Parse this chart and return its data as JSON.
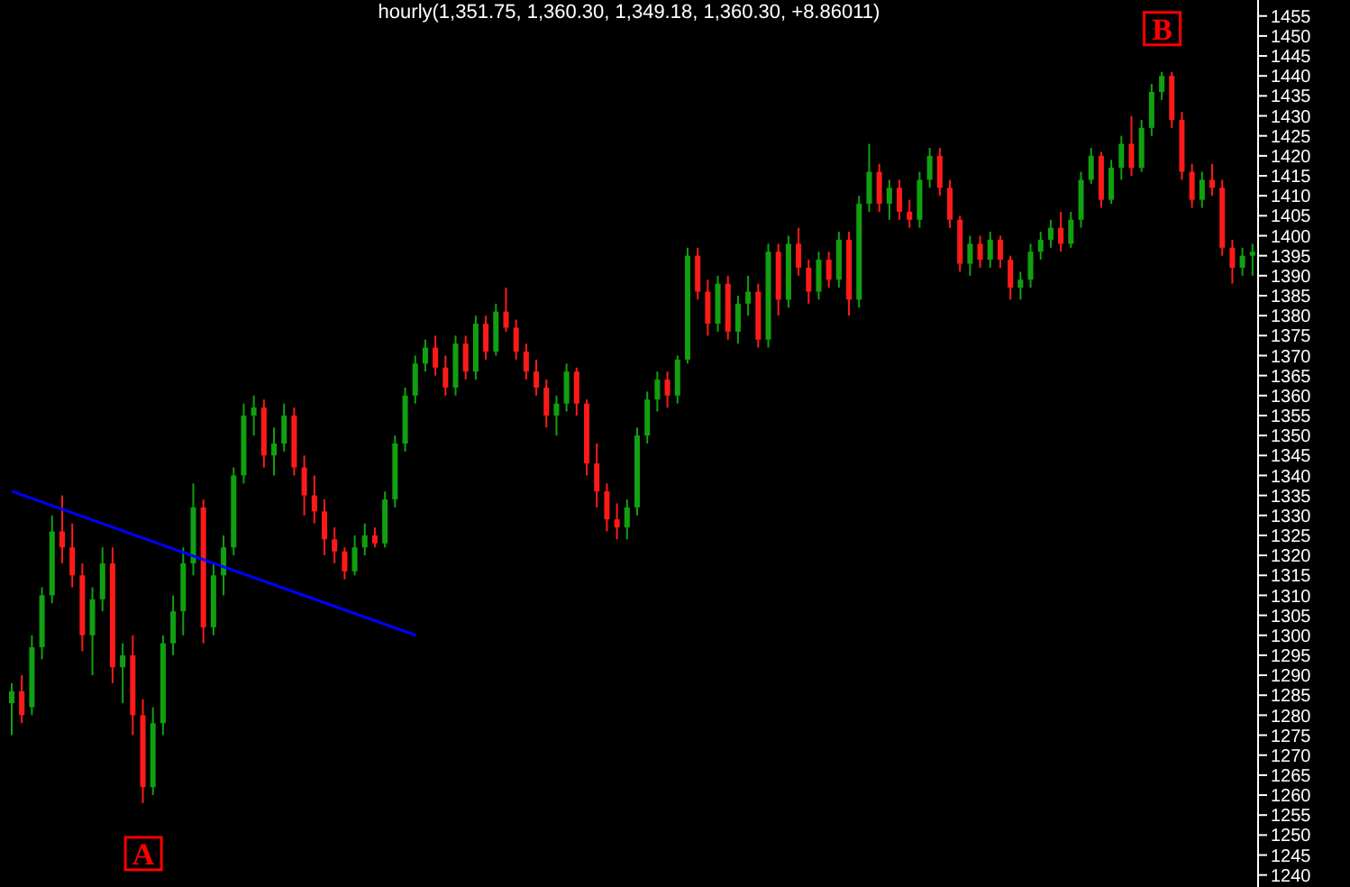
{
  "chart_data": {
    "type": "candlestick",
    "title": "hourly(1,351.75, 1,360.30, 1,349.18, 1,360.30, +8.86011)",
    "categories": [
      null,
      null,
      null,
      null,
      null,
      null,
      null,
      null,
      null,
      null,
      null,
      null,
      null,
      null,
      null,
      null,
      null,
      null,
      null,
      null,
      null,
      null,
      null,
      null,
      null,
      null,
      null,
      null,
      null,
      null,
      null,
      null,
      null,
      null,
      null,
      null,
      null,
      null,
      null,
      null,
      null,
      null,
      null,
      null,
      null,
      null,
      null,
      null,
      null,
      null,
      null,
      null,
      null,
      null,
      null,
      null,
      null,
      null,
      null,
      null,
      null,
      null,
      null,
      null,
      null,
      null,
      null,
      null,
      null,
      null,
      null,
      null,
      null,
      null,
      null,
      null,
      null,
      null,
      null,
      null,
      null,
      null,
      null,
      null,
      null,
      null,
      null,
      null,
      null,
      null,
      null,
      null,
      null,
      null,
      null,
      null,
      null,
      null,
      null,
      null,
      null,
      null,
      null,
      null,
      null,
      null,
      null,
      null,
      null,
      null,
      null,
      null,
      null,
      null,
      null,
      null,
      null,
      null,
      null,
      null,
      null,
      null,
      null,
      null
    ],
    "colors": [
      "#11a011",
      "#ff1a1a",
      "#11a011",
      "#11a011",
      "#11a011",
      "#ff1a1a",
      "#ff1a1a",
      "#ff1a1a",
      "#11a011",
      "#11a011",
      "#ff1a1a",
      "#11a011",
      "#ff1a1a",
      "#ff1a1a",
      "#11a011",
      "#11a011",
      "#11a011",
      "#11a011",
      "#11a011",
      "#ff1a1a",
      "#11a011",
      "#11a011",
      "#11a011",
      "#11a011",
      "#11a011",
      "#ff1a1a",
      "#11a011",
      "#11a011",
      "#ff1a1a",
      "#ff1a1a",
      "#ff1a1a",
      "#ff1a1a",
      "#ff1a1a",
      "#ff1a1a",
      "#11a011",
      "#11a011",
      "#ff1a1a",
      "#11a011",
      "#11a011",
      "#11a011",
      "#11a011",
      "#11a011",
      "#ff1a1a",
      "#ff1a1a",
      "#11a011",
      "#ff1a1a",
      "#11a011",
      "#ff1a1a",
      "#11a011",
      "#ff1a1a",
      "#ff1a1a",
      "#ff1a1a",
      "#ff1a1a",
      "#ff1a1a",
      "#11a011",
      "#11a011",
      "#ff1a1a",
      "#ff1a1a",
      "#ff1a1a",
      "#ff1a1a",
      "#ff1a1a",
      "#11a011",
      "#11a011",
      "#11a011",
      "#11a011",
      "#ff1a1a",
      "#11a011",
      "#11a011",
      "#ff1a1a",
      "#ff1a1a",
      "#11a011",
      "#ff1a1a",
      "#11a011",
      "#11a011",
      "#ff1a1a",
      "#11a011",
      "#ff1a1a",
      "#11a011",
      "#ff1a1a",
      "#ff1a1a",
      "#11a011",
      "#ff1a1a",
      "#11a011",
      "#ff1a1a",
      "#11a011",
      "#11a011",
      "#ff1a1a",
      "#11a011",
      "#ff1a1a",
      "#ff1a1a",
      "#11a011",
      "#11a011",
      "#ff1a1a",
      "#ff1a1a",
      "#ff1a1a",
      "#11a011",
      "#ff1a1a",
      "#11a011",
      "#ff1a1a",
      "#ff1a1a",
      "#11a011",
      "#11a011",
      "#11a011",
      "#11a011",
      "#ff1a1a",
      "#11a011",
      "#11a011",
      "#11a011",
      "#ff1a1a",
      "#11a011",
      "#11a011",
      "#ff1a1a",
      "#11a011",
      "#11a011",
      "#11a011",
      "#ff1a1a",
      "#ff1a1a",
      "#ff1a1a",
      "#11a011",
      "#ff1a1a",
      "#ff1a1a",
      "#ff1a1a",
      "#11a011",
      "#11a011"
    ],
    "ohlc": [
      [
        1283,
        1288,
        1275,
        1286
      ],
      [
        1286,
        1290,
        1278,
        1280
      ],
      [
        1282,
        1300,
        1280,
        1297
      ],
      [
        1297,
        1312,
        1294,
        1310
      ],
      [
        1310,
        1330,
        1308,
        1326
      ],
      [
        1326,
        1335,
        1318,
        1322
      ],
      [
        1322,
        1328,
        1312,
        1315
      ],
      [
        1315,
        1318,
        1296,
        1300
      ],
      [
        1300,
        1312,
        1290,
        1309
      ],
      [
        1309,
        1322,
        1306,
        1318
      ],
      [
        1318,
        1322,
        1288,
        1292
      ],
      [
        1292,
        1298,
        1283,
        1295
      ],
      [
        1295,
        1300,
        1275,
        1280
      ],
      [
        1280,
        1284,
        1258,
        1262
      ],
      [
        1262,
        1282,
        1260,
        1278
      ],
      [
        1278,
        1300,
        1275,
        1298
      ],
      [
        1298,
        1310,
        1295,
        1306
      ],
      [
        1306,
        1322,
        1300,
        1318
      ],
      [
        1318,
        1338,
        1315,
        1332
      ],
      [
        1332,
        1334,
        1298,
        1302
      ],
      [
        1302,
        1318,
        1300,
        1315
      ],
      [
        1315,
        1325,
        1310,
        1322
      ],
      [
        1322,
        1342,
        1320,
        1340
      ],
      [
        1340,
        1358,
        1338,
        1355
      ],
      [
        1355,
        1360,
        1350,
        1357
      ],
      [
        1357,
        1359,
        1342,
        1345
      ],
      [
        1345,
        1352,
        1340,
        1348
      ],
      [
        1348,
        1358,
        1346,
        1355
      ],
      [
        1355,
        1357,
        1340,
        1342
      ],
      [
        1342,
        1345,
        1330,
        1335
      ],
      [
        1335,
        1340,
        1328,
        1331
      ],
      [
        1331,
        1334,
        1320,
        1324
      ],
      [
        1324,
        1327,
        1318,
        1321
      ],
      [
        1321,
        1322,
        1314,
        1316
      ],
      [
        1316,
        1325,
        1315,
        1322
      ],
      [
        1322,
        1328,
        1320,
        1325
      ],
      [
        1325,
        1327,
        1322,
        1323
      ],
      [
        1323,
        1336,
        1322,
        1334
      ],
      [
        1334,
        1350,
        1332,
        1348
      ],
      [
        1348,
        1362,
        1346,
        1360
      ],
      [
        1360,
        1370,
        1358,
        1368
      ],
      [
        1368,
        1374,
        1366,
        1372
      ],
      [
        1372,
        1375,
        1365,
        1367
      ],
      [
        1367,
        1370,
        1360,
        1362
      ],
      [
        1362,
        1375,
        1360,
        1373
      ],
      [
        1373,
        1375,
        1364,
        1366
      ],
      [
        1366,
        1380,
        1364,
        1378
      ],
      [
        1378,
        1380,
        1369,
        1371
      ],
      [
        1371,
        1383,
        1370,
        1381
      ],
      [
        1381,
        1387,
        1376,
        1377
      ],
      [
        1377,
        1379,
        1369,
        1371
      ],
      [
        1371,
        1373,
        1364,
        1366
      ],
      [
        1366,
        1369,
        1360,
        1362
      ],
      [
        1362,
        1364,
        1352,
        1355
      ],
      [
        1355,
        1360,
        1350,
        1358
      ],
      [
        1358,
        1368,
        1356,
        1366
      ],
      [
        1366,
        1367,
        1355,
        1358
      ],
      [
        1358,
        1359,
        1340,
        1343
      ],
      [
        1343,
        1348,
        1332,
        1336
      ],
      [
        1336,
        1338,
        1326,
        1329
      ],
      [
        1329,
        1333,
        1324,
        1327
      ],
      [
        1327,
        1334,
        1324,
        1332
      ],
      [
        1332,
        1352,
        1330,
        1350
      ],
      [
        1350,
        1361,
        1348,
        1359
      ],
      [
        1359,
        1366,
        1356,
        1364
      ],
      [
        1364,
        1366,
        1357,
        1360
      ],
      [
        1360,
        1370,
        1358,
        1369
      ],
      [
        1369,
        1397,
        1368,
        1395
      ],
      [
        1395,
        1397,
        1384,
        1386
      ],
      [
        1386,
        1389,
        1375,
        1378
      ],
      [
        1378,
        1390,
        1376,
        1388
      ],
      [
        1388,
        1390,
        1374,
        1376
      ],
      [
        1376,
        1385,
        1373,
        1383
      ],
      [
        1383,
        1390,
        1380,
        1386
      ],
      [
        1386,
        1388,
        1372,
        1374
      ],
      [
        1374,
        1398,
        1372,
        1396
      ],
      [
        1396,
        1398,
        1380,
        1384
      ],
      [
        1384,
        1400,
        1382,
        1398
      ],
      [
        1398,
        1402,
        1390,
        1392
      ],
      [
        1392,
        1394,
        1383,
        1386
      ],
      [
        1386,
        1396,
        1384,
        1394
      ],
      [
        1394,
        1396,
        1387,
        1389
      ],
      [
        1389,
        1401,
        1387,
        1399
      ],
      [
        1399,
        1401,
        1380,
        1384
      ],
      [
        1384,
        1410,
        1382,
        1408
      ],
      [
        1408,
        1423,
        1406,
        1416
      ],
      [
        1416,
        1418,
        1406,
        1408
      ],
      [
        1408,
        1414,
        1404,
        1412
      ],
      [
        1412,
        1414,
        1404,
        1406
      ],
      [
        1406,
        1409,
        1402,
        1404
      ],
      [
        1404,
        1416,
        1402,
        1414
      ],
      [
        1414,
        1422,
        1412,
        1420
      ],
      [
        1420,
        1422,
        1410,
        1412
      ],
      [
        1412,
        1414,
        1402,
        1404
      ],
      [
        1404,
        1405,
        1391,
        1393
      ],
      [
        1393,
        1400,
        1390,
        1398
      ],
      [
        1398,
        1400,
        1392,
        1394
      ],
      [
        1394,
        1401,
        1392,
        1399
      ],
      [
        1399,
        1400,
        1392,
        1394
      ],
      [
        1394,
        1395,
        1384,
        1387
      ],
      [
        1387,
        1391,
        1384,
        1389
      ],
      [
        1389,
        1398,
        1387,
        1396
      ],
      [
        1396,
        1401,
        1394,
        1399
      ],
      [
        1399,
        1404,
        1397,
        1402
      ],
      [
        1402,
        1406,
        1396,
        1398
      ],
      [
        1398,
        1406,
        1397,
        1404
      ],
      [
        1404,
        1416,
        1402,
        1414
      ],
      [
        1414,
        1422,
        1413,
        1420
      ],
      [
        1420,
        1421,
        1407,
        1409
      ],
      [
        1409,
        1419,
        1408,
        1417
      ],
      [
        1417,
        1425,
        1414,
        1423
      ],
      [
        1423,
        1430,
        1415,
        1417
      ],
      [
        1417,
        1429,
        1416,
        1427
      ],
      [
        1427,
        1438,
        1425,
        1436
      ],
      [
        1436,
        1441,
        1434,
        1440
      ],
      [
        1440,
        1441,
        1427,
        1429
      ],
      [
        1429,
        1431,
        1414,
        1416
      ],
      [
        1416,
        1418,
        1407,
        1409
      ],
      [
        1409,
        1416,
        1407,
        1414
      ],
      [
        1414,
        1418,
        1410,
        1412
      ],
      [
        1412,
        1414,
        1395,
        1397
      ],
      [
        1397,
        1399,
        1388,
        1392
      ],
      [
        1392,
        1397,
        1390,
        1395
      ],
      [
        1395,
        1398,
        1390,
        1396
      ]
    ],
    "series": [
      {
        "type": "line",
        "color": "#0000ff",
        "values": [
          1336,
          null,
          null,
          null,
          null,
          null,
          null,
          null,
          null,
          null,
          null,
          null,
          null,
          null,
          null,
          null,
          null,
          null,
          null,
          null,
          null,
          null,
          null,
          null,
          null,
          null,
          null,
          null,
          null,
          null,
          null,
          null,
          null,
          null,
          null,
          null,
          null,
          null,
          null,
          null,
          1300,
          null,
          null,
          null,
          null,
          null,
          null,
          null,
          null,
          null,
          null,
          null,
          null,
          null,
          null,
          null,
          null,
          null,
          null,
          null,
          null,
          null,
          null,
          null,
          null,
          null,
          null,
          null,
          null,
          null,
          null,
          null,
          null,
          null,
          null,
          null,
          null,
          null,
          null,
          null,
          null,
          null,
          null,
          null,
          null,
          null,
          null,
          null,
          null,
          null,
          null,
          null,
          null,
          null,
          null,
          null,
          null,
          null,
          null,
          null,
          null,
          null,
          null,
          null,
          null,
          null,
          null,
          null,
          null,
          null,
          null,
          null,
          null,
          null,
          null,
          null,
          null,
          null,
          null,
          null,
          null,
          null,
          null,
          null
        ]
      }
    ],
    "ylim": [
      1237,
      1459
    ],
    "yticks": [
      1240,
      1245,
      1250,
      1255,
      1260,
      1265,
      1270,
      1275,
      1280,
      1285,
      1290,
      1295,
      1300,
      1305,
      1310,
      1315,
      1320,
      1325,
      1330,
      1335,
      1340,
      1345,
      1350,
      1355,
      1360,
      1365,
      1370,
      1375,
      1380,
      1385,
      1390,
      1395,
      1400,
      1405,
      1410,
      1415,
      1420,
      1425,
      1430,
      1435,
      1440,
      1445,
      1450,
      1455
    ],
    "annotations": [
      "A",
      "B"
    ],
    "grid": false,
    "legend": false
  }
}
